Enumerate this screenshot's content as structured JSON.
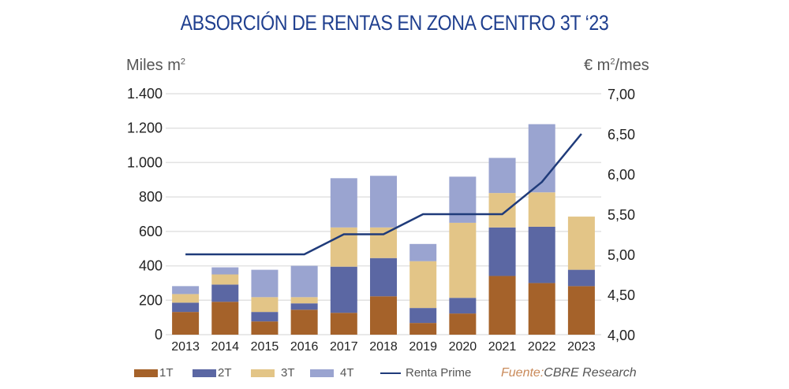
{
  "title": "ABSORCIÓN DE RENTAS EN ZONA CENTRO 3T ‘23",
  "left_unit": {
    "base": "Miles m",
    "sup": "2"
  },
  "right_unit": {
    "pre": "€ m",
    "sup": "2",
    "post": "/mes"
  },
  "legend": {
    "items": [
      "1T",
      "2T",
      "3T",
      "4T"
    ],
    "line": "Renta Prime",
    "source_label": "Fuente:",
    "source_text": "CBRE Research"
  },
  "colors": {
    "1T": "#a5622a",
    "2T": "#5b67a3",
    "3T": "#e3c587",
    "4T": "#9aa4d0",
    "line": "#1f3b7a",
    "title": "#1f3f8f"
  },
  "chart_data": {
    "type": "bar",
    "stacked": true,
    "title": "ABSORCIÓN DE RENTAS EN ZONA CENTRO 3T ‘23",
    "ylabel": "Miles m2",
    "y2label": "€ m2/mes",
    "categories": [
      "2013",
      "2014",
      "2015",
      "2016",
      "2017",
      "2018",
      "2019",
      "2020",
      "2021",
      "2022",
      "2023"
    ],
    "series": [
      {
        "name": "1T",
        "values": [
          132,
          191,
          77,
          145,
          127,
          223,
          68,
          123,
          341,
          300,
          282
        ]
      },
      {
        "name": "2T",
        "values": [
          54,
          100,
          55,
          37,
          268,
          222,
          87,
          91,
          282,
          327,
          95
        ]
      },
      {
        "name": "3T",
        "values": [
          50,
          59,
          86,
          36,
          228,
          178,
          272,
          436,
          200,
          200,
          309
        ]
      },
      {
        "name": "4T",
        "values": [
          46,
          41,
          159,
          182,
          286,
          300,
          100,
          268,
          204,
          396,
          0
        ]
      }
    ],
    "line_series": {
      "name": "Renta Prime",
      "axis": "right",
      "values": [
        5.0,
        5.0,
        5.0,
        5.0,
        5.25,
        5.25,
        5.5,
        5.5,
        5.5,
        5.9,
        6.5
      ]
    },
    "ylim": [
      0,
      1400
    ],
    "yticks": [
      "0",
      "200",
      "400",
      "600",
      "800",
      "1.000",
      "1.200",
      "1.400"
    ],
    "y2lim": [
      4.0,
      7.0
    ],
    "y2ticks": [
      "4,00",
      "4,50",
      "5,00",
      "5,50",
      "6,00",
      "6,50",
      "7,00"
    ],
    "grid": true,
    "legend_position": "bottom"
  }
}
